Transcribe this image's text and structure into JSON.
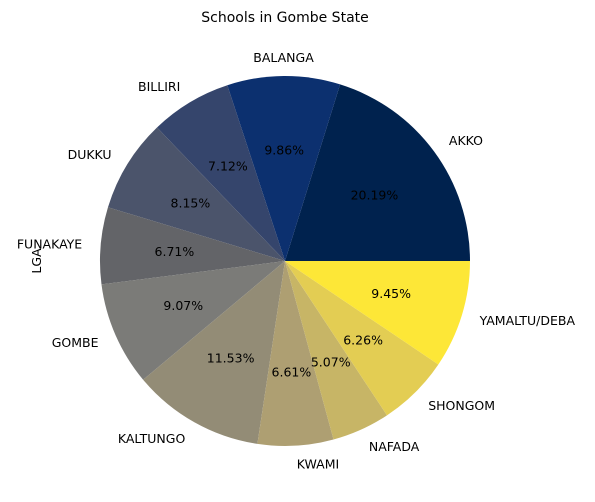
{
  "chart_data": {
    "type": "pie",
    "title": "Schools in Gombe State",
    "ylabel": "LGA",
    "categories": [
      "AKKO",
      "BALANGA",
      "BILLIRI",
      "DUKKU",
      "FUNAKAYE",
      "GOMBE",
      "KALTUNGO",
      "KWAMI",
      "NAFADA",
      "SHONGOM",
      "YAMALTU/DEBA"
    ],
    "values": [
      20.19,
      9.86,
      7.12,
      8.15,
      6.71,
      9.07,
      11.53,
      6.61,
      5.07,
      6.26,
      9.45
    ],
    "percent_labels": [
      "20.19%",
      "9.86%",
      "7.12%",
      "8.15%",
      "6.71%",
      "9.07%",
      "11.53%",
      "6.61%",
      "5.07%",
      "6.26%",
      "9.45%"
    ],
    "colors": [
      "#00224e",
      "#0c306f",
      "#35456c",
      "#4b546b",
      "#636468",
      "#7b7b78",
      "#938c76",
      "#ae9f72",
      "#c7b566",
      "#e3cd53",
      "#fde737"
    ],
    "start_angle_deg": 0,
    "direction": "counterclockwise",
    "legend": "none"
  }
}
